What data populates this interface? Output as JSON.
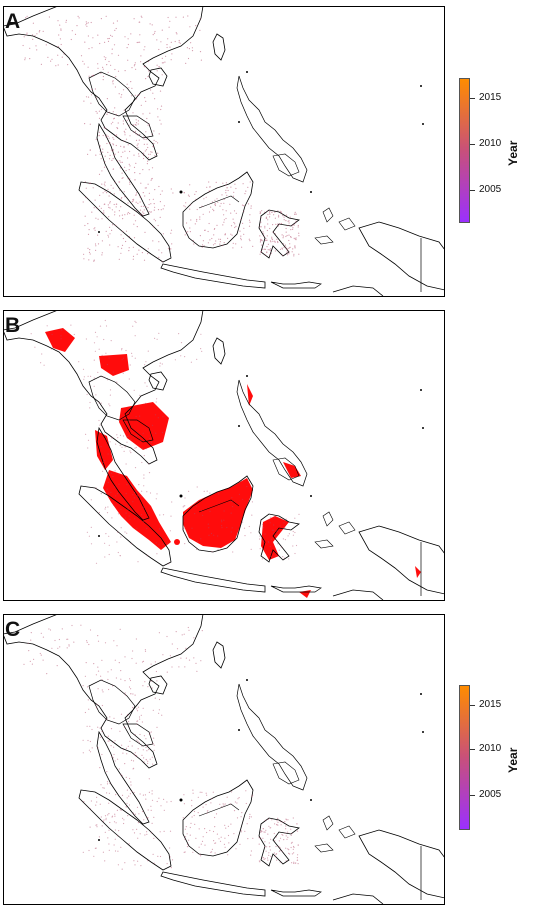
{
  "panels": [
    {
      "letter": "A",
      "overlay": "dots",
      "legend": true
    },
    {
      "letter": "B",
      "overlay": "red",
      "legend": false
    },
    {
      "letter": "C",
      "overlay": "dots-sparse",
      "legend": true
    }
  ],
  "legend": {
    "title": "Year",
    "ticks": [
      "2015",
      "2010",
      "2005"
    ],
    "color_top": "#ff8c00",
    "color_mid": "#c8507a",
    "color_bottom": "#9b30ff"
  },
  "colors": {
    "coast": "#000000",
    "dots_a": "#b04a6a",
    "red_overlay": "#ff0000"
  }
}
